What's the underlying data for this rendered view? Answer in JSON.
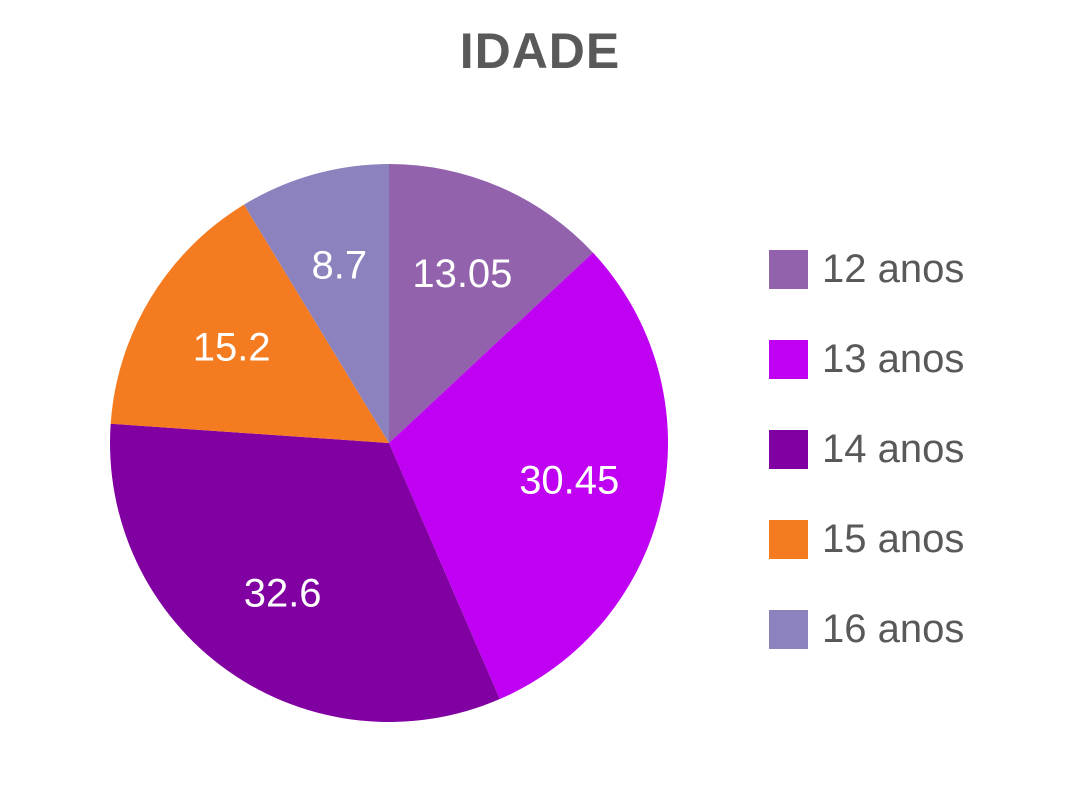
{
  "chart_data": {
    "type": "pie",
    "title": "IDADE",
    "categories": [
      "12 anos",
      "13 anos",
      "14 anos",
      "15 anos",
      "16 anos"
    ],
    "values": [
      13.05,
      30.45,
      32.6,
      15.2,
      8.7
    ],
    "value_labels": [
      "13.05",
      "30.45",
      "32.6",
      "15.2",
      "8.7"
    ],
    "colors": [
      "#9262AC",
      "#C000F3",
      "#8100A2",
      "#F47B20",
      "#8C82BE"
    ],
    "start": "12 o'clock",
    "direction": "clockwise",
    "legend_position": "right"
  }
}
